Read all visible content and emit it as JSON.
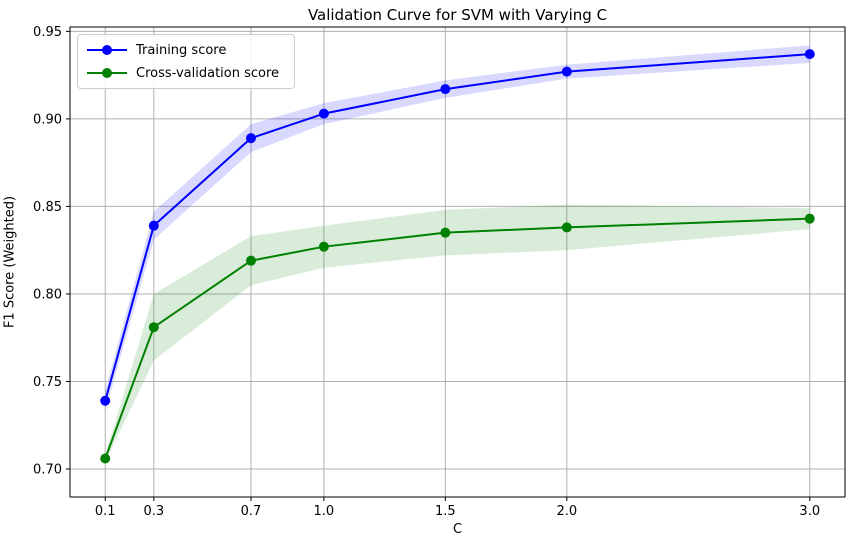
{
  "chart_data": {
    "type": "line",
    "title": "Validation Curve for SVM with Varying C",
    "xlabel": "C",
    "ylabel": "F1 Score (Weighted)",
    "x": [
      0.1,
      0.3,
      0.7,
      1.0,
      1.5,
      2.0,
      3.0
    ],
    "x_tick_labels": [
      "0.1",
      "0.3",
      "0.7",
      "1.0",
      "1.5",
      "2.0",
      "3.0"
    ],
    "y_ticks": [
      0.7,
      0.75,
      0.8,
      0.85,
      0.9,
      0.95
    ],
    "y_tick_labels": [
      "0.70",
      "0.75",
      "0.80",
      "0.85",
      "0.90",
      "0.95"
    ],
    "xlim": [
      -0.045,
      3.145
    ],
    "ylim": [
      0.684,
      0.9525
    ],
    "grid": true,
    "grid_color": "#b0b0b0",
    "background_color": "#ffffff",
    "spine_color": "#000000",
    "legend_position": "upper left",
    "series": [
      {
        "name": "Training score",
        "color": "#0000ff",
        "marker": "circle",
        "band_opacity": 0.15,
        "values": [
          0.739,
          0.839,
          0.889,
          0.903,
          0.917,
          0.927,
          0.937
        ],
        "std": [
          0.006,
          0.008,
          0.008,
          0.006,
          0.005,
          0.004,
          0.005
        ]
      },
      {
        "name": "Cross-validation score",
        "color": "#008000",
        "marker": "circle",
        "band_opacity": 0.15,
        "values": [
          0.706,
          0.781,
          0.819,
          0.827,
          0.835,
          0.838,
          0.843
        ],
        "std": [
          0.002,
          0.019,
          0.014,
          0.012,
          0.013,
          0.013,
          0.006
        ]
      }
    ]
  }
}
